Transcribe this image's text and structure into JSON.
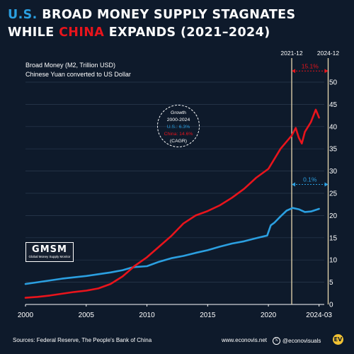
{
  "title": {
    "line1_a": "U.S.",
    "line1_b": " BROAD MONEY SUPPLY STAGNATES",
    "line2_a": "WHILE ",
    "line2_b": "CHINA",
    "line2_c": " EXPANDS (2021–2024)"
  },
  "subtitle": {
    "line1": "Broad Money (M2, Trillion USD)",
    "line2": "Chinese Yuan converted to US Dollar"
  },
  "growth_box": {
    "title": "Growth",
    "period": "2000-2024",
    "us": "U.S.: 6.3%",
    "china": "China: 14.6%",
    "note": "(CAGR)"
  },
  "gmsm": {
    "main": "GMSM",
    "sub": "Global Money Supply Monitor"
  },
  "footer": {
    "source": "Sources:  Federal Reserve, The People's Bank of China",
    "website": "www.econovis.net",
    "handle": "@econovisuals",
    "x_icon": "x-logo-icon",
    "logo": "EV"
  },
  "colors": {
    "background": "#0e1a2b",
    "us": "#2b9fe0",
    "china": "#e8141c",
    "grid": "#2a3a4f",
    "annotation": "#e8d9b0"
  },
  "chart_data": {
    "type": "line",
    "x_label": "",
    "y_label": "",
    "y_axis_side": "right",
    "xlim": [
      2000,
      2024.25
    ],
    "ylim": [
      0,
      50
    ],
    "x_ticks": [
      "2000",
      "2005",
      "2010",
      "2015",
      "2020",
      "2024-03"
    ],
    "x_tick_values": [
      2000,
      2005,
      2010,
      2015,
      2020,
      2024.17
    ],
    "y_ticks": [
      0,
      5,
      10,
      15,
      20,
      25,
      30,
      35,
      40,
      45,
      50
    ],
    "grid": true,
    "markers": [
      {
        "label": "2021-12",
        "x": 2021.92
      },
      {
        "label": "2024-12",
        "x": 2024.92
      }
    ],
    "annotations": [
      {
        "text": "15.1%",
        "series": "China",
        "from": 2021.92,
        "to": 2024.92,
        "y": 52.5
      },
      {
        "text": "0.1%",
        "series": "U.S.",
        "from": 2021.92,
        "to": 2024.92,
        "y": 27
      }
    ],
    "series": [
      {
        "name": "U.S.",
        "color": "#2b9fe0",
        "x": [
          2000,
          2001,
          2002,
          2003,
          2004,
          2005,
          2006,
          2007,
          2008,
          2008.75,
          2009,
          2010,
          2011,
          2012,
          2013,
          2014,
          2015,
          2016,
          2017,
          2018,
          2019,
          2019.9,
          2020.2,
          2020.5,
          2021,
          2021.5,
          2022,
          2022.5,
          2023,
          2023.5,
          2024.17
        ],
        "values": [
          4.6,
          5.0,
          5.4,
          5.8,
          6.1,
          6.4,
          6.8,
          7.2,
          7.7,
          8.3,
          8.4,
          8.6,
          9.6,
          10.4,
          10.9,
          11.6,
          12.2,
          13.0,
          13.7,
          14.2,
          14.9,
          15.5,
          17.8,
          18.4,
          19.8,
          21.1,
          21.7,
          21.4,
          20.8,
          20.9,
          21.5
        ]
      },
      {
        "name": "China",
        "color": "#e8141c",
        "x": [
          2000,
          2001,
          2002,
          2003,
          2004,
          2005,
          2006,
          2007,
          2008,
          2009,
          2010,
          2011,
          2012,
          2013,
          2014,
          2015,
          2016,
          2017,
          2018,
          2019,
          2020,
          2021,
          2021.92,
          2022.25,
          2022.5,
          2022.75,
          2023,
          2023.5,
          2023.9,
          2024.1,
          2024.17
        ],
        "values": [
          1.5,
          1.7,
          2.0,
          2.4,
          2.8,
          3.1,
          3.6,
          4.6,
          6.3,
          8.7,
          10.6,
          13.0,
          15.4,
          18.2,
          20.0,
          21.0,
          22.3,
          24.0,
          26.0,
          28.5,
          30.5,
          35.0,
          38.0,
          39.7,
          37.5,
          36.2,
          38.8,
          41.0,
          43.8,
          42.5,
          42.0
        ]
      }
    ]
  }
}
